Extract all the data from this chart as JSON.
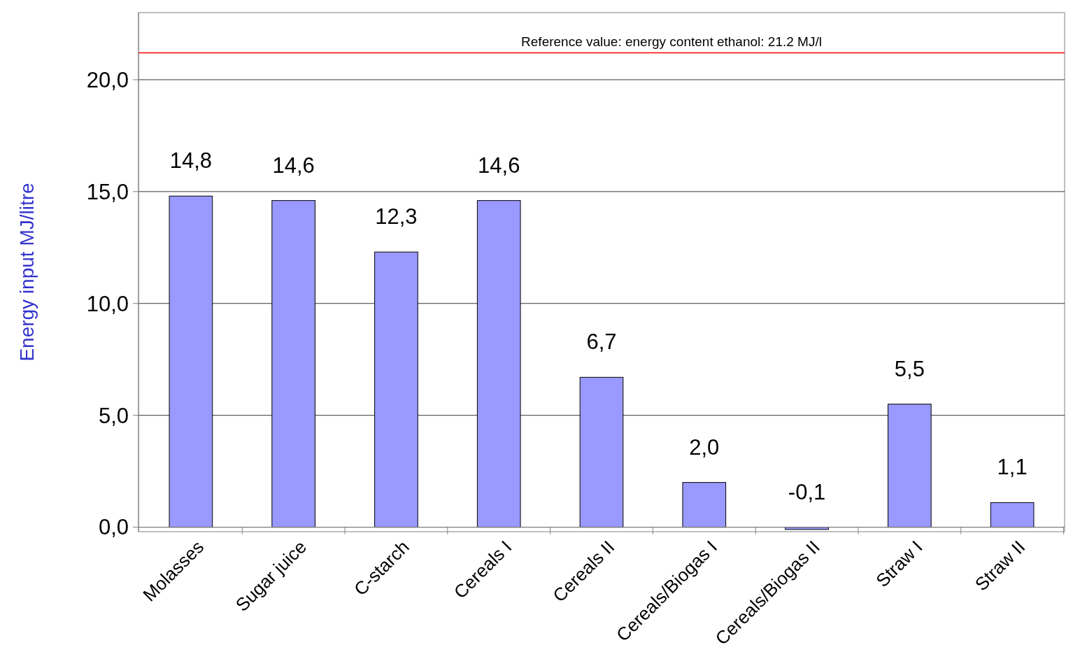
{
  "chart_data": {
    "type": "bar",
    "ylabel": "Energy input MJ/litre",
    "categories": [
      "Molasses",
      "Sugar juice",
      "C-starch",
      "Cereals I",
      "Cereals II",
      "Cereals/Biogas I",
      "Cereals/Biogas II",
      "Straw I",
      "Straw II"
    ],
    "values": [
      14.8,
      14.6,
      12.3,
      14.6,
      6.7,
      2.0,
      -0.1,
      5.5,
      1.1
    ],
    "value_labels": [
      "14,8",
      "14,6",
      "12,3",
      "14,6",
      "6,7",
      "2,0",
      "-0,1",
      "5,5",
      "1,1"
    ],
    "color": "#9999ff",
    "ylim": [
      -0.2,
      23
    ],
    "yticks": [
      {
        "value": 0,
        "label": "0,0"
      },
      {
        "value": 5,
        "label": "5,0"
      },
      {
        "value": 10,
        "label": "10,0"
      },
      {
        "value": 15,
        "label": "15,0"
      },
      {
        "value": 20,
        "label": "20,0"
      }
    ],
    "grid": "y",
    "ref_lines": [
      {
        "axis": "y",
        "value": 21.2,
        "label": "Reference value: energy content ethanol: 21.2 MJ/l",
        "color": "#ff0000"
      }
    ]
  }
}
